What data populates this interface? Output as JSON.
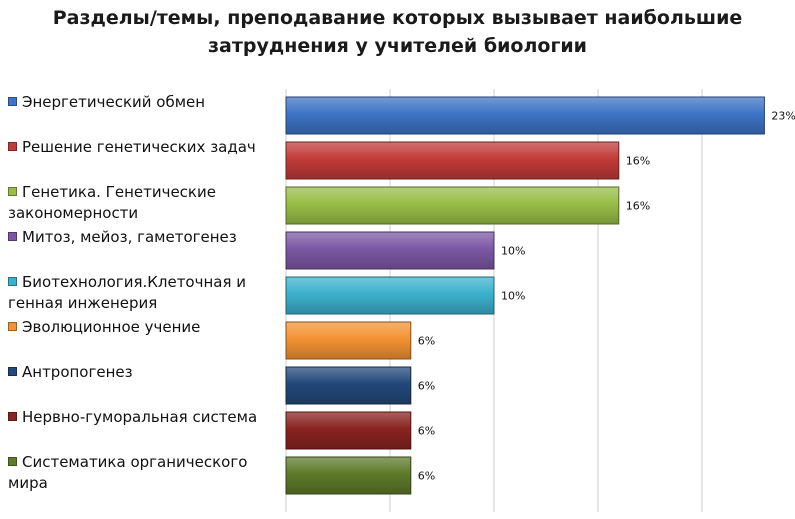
{
  "chart_data": {
    "type": "bar",
    "orientation": "horizontal",
    "title_lines": [
      "Разделы/темы, преподавание которых вызывает наибольшие",
      "затруднения у учителей биологии"
    ],
    "categories": [
      "Энергетический обмен",
      "Решение генетических задач",
      "Генетика. Генетические закономерности",
      "Митоз, мейоз, гаметогенез",
      "Биотехнология.Клеточная и генная инженерия",
      "Эволюционное учение",
      "Антропогенез",
      "Нервно-гуморальная система",
      "Систематика органического мира"
    ],
    "values": [
      23,
      16,
      16,
      10,
      10,
      6,
      6,
      6,
      6
    ],
    "data_labels": [
      "23%",
      "16%",
      "16%",
      "10%",
      "10%",
      "6%",
      "6%",
      "6%",
      "6%"
    ],
    "colors": [
      "#3E74C6",
      "#C23B39",
      "#98BE47",
      "#7C58A4",
      "#3CB1CC",
      "#F39233",
      "#23497A",
      "#8A2421",
      "#5E7A2A"
    ],
    "xlim": [
      0,
      25
    ],
    "grid": true,
    "legend_position": "left",
    "xlabel": "",
    "ylabel": ""
  }
}
